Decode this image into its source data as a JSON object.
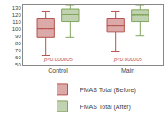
{
  "chart_data": {
    "type": "box",
    "categories": [
      "Control",
      "Main"
    ],
    "series": [
      {
        "name": "FMAS Total (Before)",
        "color": "#b85450",
        "values": [
          {
            "q1": 88,
            "median": 100,
            "q3": 115,
            "whislo": 63,
            "whishi": 125,
            "mean": 100
          },
          {
            "q1": 96,
            "median": 105,
            "q3": 115,
            "whislo": 68,
            "whishi": 125,
            "mean": 105
          }
        ]
      },
      {
        "name": "FMAS Total (After)",
        "color": "#82a55f",
        "values": [
          {
            "q1": 110,
            "median": 120,
            "q3": 128,
            "whislo": 88,
            "whishi": 133,
            "mean": 120
          },
          {
            "q1": 110,
            "median": 120,
            "q3": 127,
            "whislo": 90,
            "whishi": 133,
            "mean": 119
          }
        ]
      }
    ],
    "annotations": [
      {
        "text": "p<0.000005",
        "category": "Control",
        "color": "#c0504d"
      },
      {
        "text": "p<0.000005",
        "category": "Main",
        "color": "#c0504d"
      }
    ],
    "ylim": [
      50,
      133
    ],
    "yticks": [
      50,
      60,
      70,
      80,
      90,
      100,
      110,
      120,
      130
    ],
    "grid": false,
    "legend": "bottom"
  }
}
